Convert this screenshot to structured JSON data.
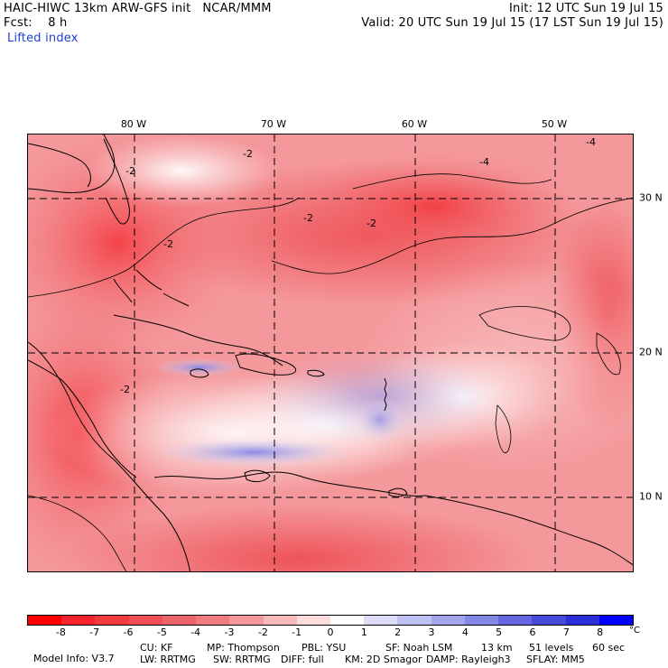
{
  "header": {
    "model": "HAIC-HIWC 13km ARW-GFS init   NCAR/MMM",
    "init": "Init: 12 UTC Sun 19 Jul 15",
    "fcst": "Fcst:    8 h",
    "valid": "Valid: 20 UTC Sun 19 Jul 15 (17 LST Sun 19 Jul 15)",
    "field": "Lifted index"
  },
  "map": {
    "lon_labels": [
      "80 W",
      "70 W",
      "60 W",
      "50 W"
    ],
    "lat_labels": [
      "30 N",
      "20 N",
      "10 N"
    ],
    "contour_labels": [
      "-2",
      "-2",
      "-2",
      "-2",
      "-4",
      "-4",
      "-2",
      "-2"
    ],
    "background_color": "#f7b9b5"
  },
  "colorbar": {
    "colors": [
      "#ff0000",
      "#f8232b",
      "#f33a3f",
      "#ee5055",
      "#ea6469",
      "#f07c80",
      "#f4989b",
      "#f8b9ba",
      "#fcdcdc",
      "#ffffff",
      "#dcdcf8",
      "#bfc0f2",
      "#a2a4ec",
      "#8487e6",
      "#6467e0",
      "#474ad9",
      "#2b2dd8",
      "#0000ff"
    ],
    "tick_labels": [
      "-8",
      "-7",
      "-6",
      "-5",
      "-4",
      "-3",
      "-2",
      "-1",
      "0",
      "1",
      "2",
      "3",
      "4",
      "5",
      "6",
      "7",
      "8"
    ],
    "unit": "°C"
  },
  "footer": {
    "line1": [
      "Model Info: V3.7",
      "CU: KF",
      "MP: Thompson",
      "PBL: YSU",
      "SF: Noah LSM",
      "13 km",
      "51 levels",
      "60 sec"
    ],
    "line2": [
      "LW: RRTMG",
      "SW: RRTMG",
      "DIFF: full",
      "KM: 2D Smagor",
      "DAMP: Rayleigh3",
      "SFLAY: MM5"
    ]
  }
}
